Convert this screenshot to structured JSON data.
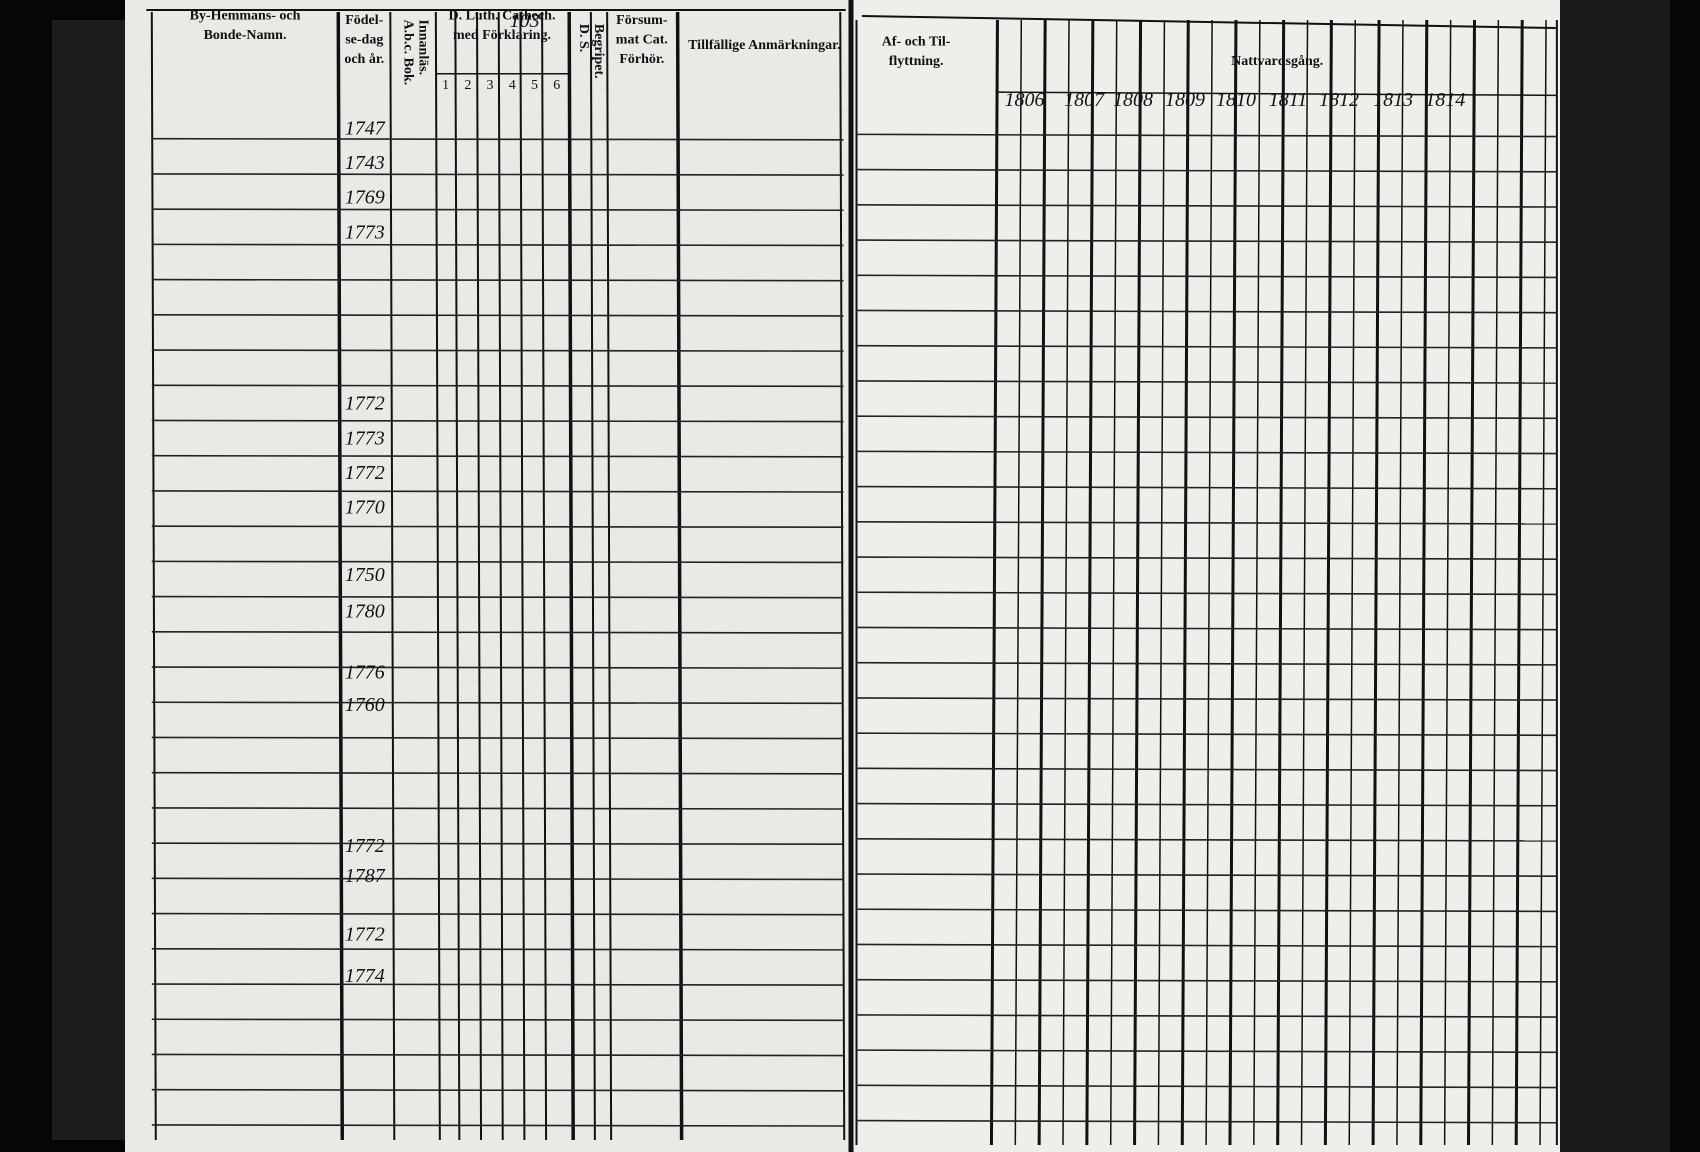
{
  "page_number": "103",
  "left_page": {
    "headers": [
      {
        "lines": [
          "By-Hemmans- och",
          "Bonde-Namn."
        ]
      },
      {
        "lines": [
          "Födel-",
          "se-dag",
          "och år."
        ]
      },
      {
        "lines": [
          "A.b.c. Bok.",
          "Innanläs."
        ]
      },
      {
        "lines": [
          "D. Luth. Cathech.",
          "med Förklaring."
        ]
      },
      {
        "lines": [
          "D. S.",
          "Begripet."
        ]
      },
      {
        "lines": [
          "Försum-",
          "mat Cat.",
          "Förhör."
        ]
      },
      {
        "lines": [
          "Tillfällige Anmärkningar."
        ]
      }
    ],
    "catechism_parts": [
      "1",
      "2",
      "3",
      "4",
      "5",
      "6"
    ],
    "birth_years": [
      "1747",
      "1743",
      "1769",
      "1773",
      "1772",
      "1773",
      "1772",
      "1770",
      "1750",
      "1780",
      "1776",
      "1760",
      "1772",
      "1787",
      "1772",
      "1774"
    ]
  },
  "right_page": {
    "headers": [
      {
        "lines": [
          "Af- och Til-",
          "flyttning."
        ]
      },
      {
        "lines": [
          "Nattvardsgång."
        ]
      }
    ],
    "years": [
      "1806",
      "1807",
      "1808",
      "1809",
      "1810",
      "1811",
      "1812",
      "1813",
      "1814"
    ]
  }
}
